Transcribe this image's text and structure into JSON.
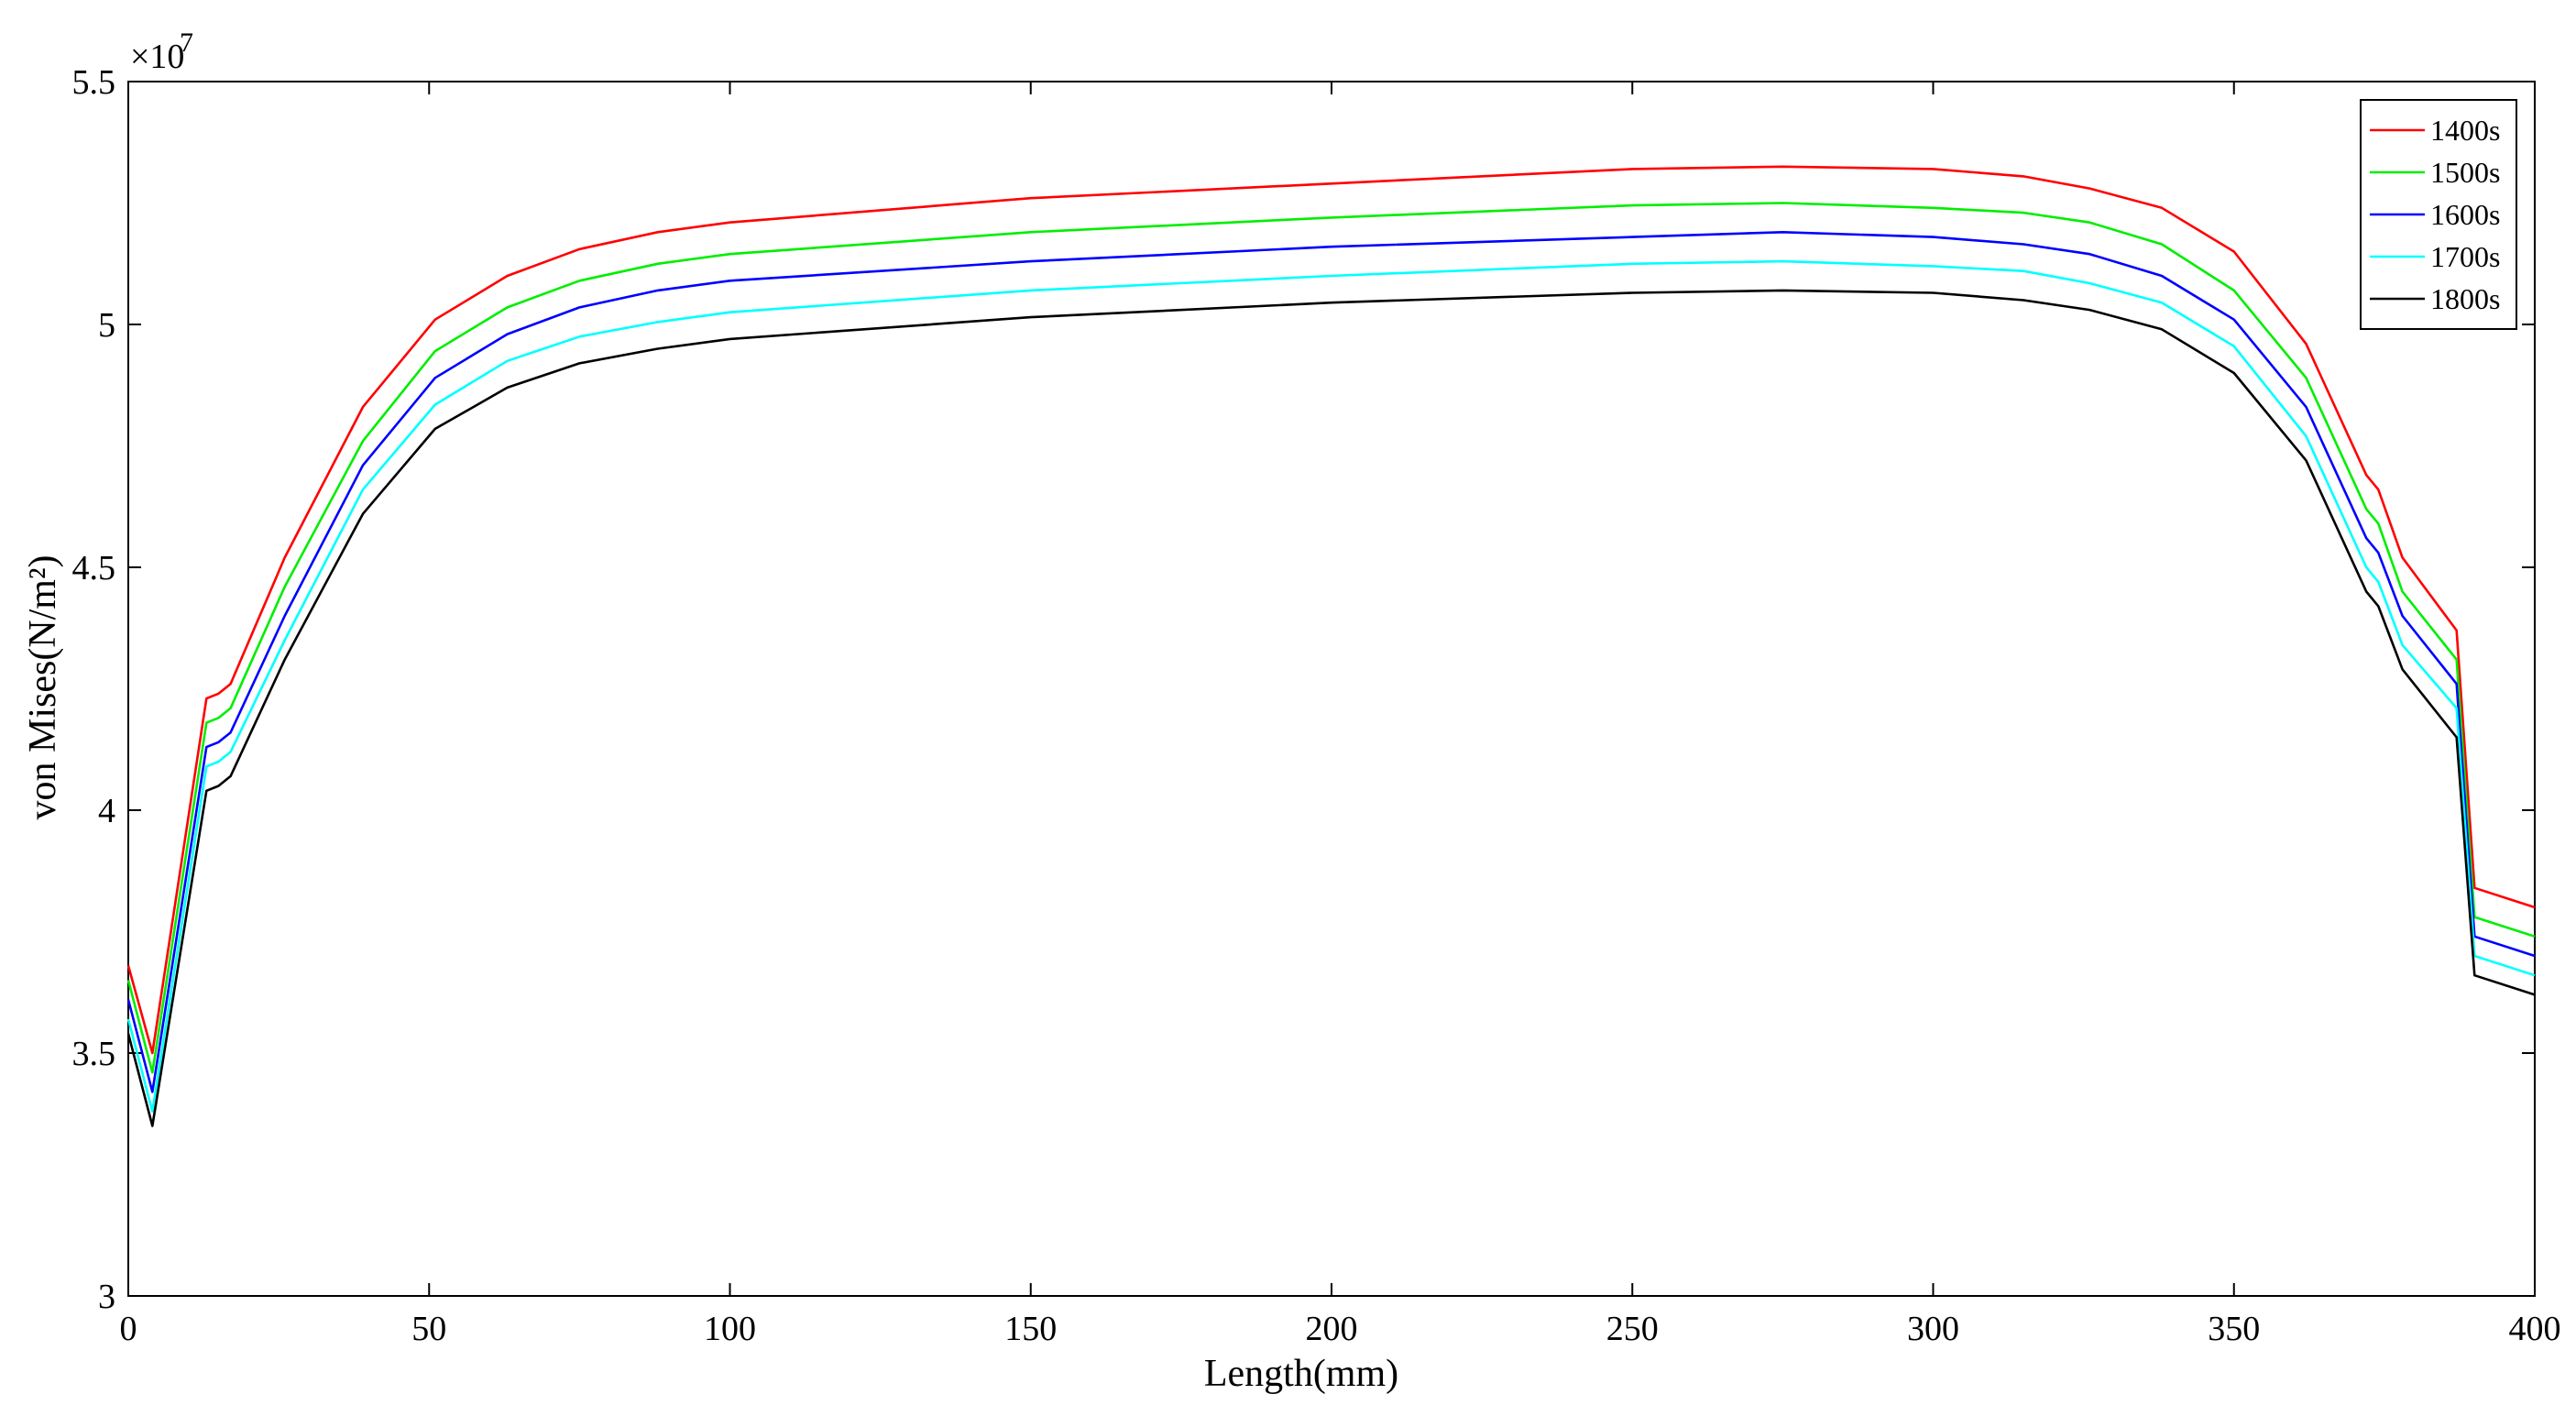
{
  "chart_data": {
    "type": "line",
    "title": "",
    "xlabel": "Length(mm)",
    "ylabel": "von Mises(N/m²)",
    "xlim": [
      0,
      400
    ],
    "ylim": [
      3.0,
      5.5
    ],
    "y_multiplier": "×10",
    "y_exponent": "7",
    "xticks": [
      "0",
      "50",
      "100",
      "150",
      "200",
      "250",
      "300",
      "350",
      "400"
    ],
    "yticks": [
      "3",
      "3.5",
      "4",
      "4.5",
      "5",
      "5.5"
    ],
    "grid": false,
    "legend_position": "top-right",
    "x": [
      0,
      4,
      13,
      15,
      17,
      26,
      39,
      51,
      63,
      75,
      88,
      100,
      150,
      200,
      250,
      275,
      300,
      315,
      326,
      338,
      350,
      362,
      372,
      374,
      378,
      387,
      390,
      400
    ],
    "series": [
      {
        "name": "1400s",
        "color": "#ff0000",
        "values": [
          3.68,
          3.5,
          4.23,
          4.24,
          4.26,
          4.52,
          4.83,
          5.01,
          5.1,
          5.155,
          5.19,
          5.21,
          5.26,
          5.29,
          5.32,
          5.325,
          5.32,
          5.305,
          5.28,
          5.24,
          5.15,
          4.96,
          4.69,
          4.66,
          4.52,
          4.37,
          3.84,
          3.8
        ]
      },
      {
        "name": "1500s",
        "color": "#00ee00",
        "values": [
          3.65,
          3.46,
          4.18,
          4.19,
          4.21,
          4.46,
          4.76,
          4.945,
          5.035,
          5.09,
          5.125,
          5.145,
          5.19,
          5.22,
          5.245,
          5.25,
          5.24,
          5.23,
          5.21,
          5.165,
          5.07,
          4.89,
          4.62,
          4.59,
          4.45,
          4.31,
          3.78,
          3.74
        ]
      },
      {
        "name": "1600s",
        "color": "#0000ff",
        "values": [
          3.61,
          3.42,
          4.13,
          4.14,
          4.16,
          4.4,
          4.71,
          4.89,
          4.98,
          5.035,
          5.07,
          5.09,
          5.13,
          5.16,
          5.18,
          5.19,
          5.18,
          5.165,
          5.145,
          5.1,
          5.01,
          4.83,
          4.56,
          4.53,
          4.4,
          4.26,
          3.74,
          3.7
        ]
      },
      {
        "name": "1700s",
        "color": "#00ffff",
        "values": [
          3.57,
          3.38,
          4.09,
          4.1,
          4.12,
          4.35,
          4.66,
          4.835,
          4.925,
          4.975,
          5.005,
          5.025,
          5.07,
          5.1,
          5.125,
          5.13,
          5.12,
          5.11,
          5.085,
          5.045,
          4.955,
          4.77,
          4.5,
          4.47,
          4.34,
          4.21,
          3.7,
          3.66
        ]
      },
      {
        "name": "1800s",
        "color": "#000000",
        "values": [
          3.54,
          3.35,
          4.04,
          4.05,
          4.07,
          4.31,
          4.61,
          4.785,
          4.87,
          4.92,
          4.95,
          4.97,
          5.015,
          5.045,
          5.065,
          5.07,
          5.065,
          5.05,
          5.03,
          4.99,
          4.9,
          4.72,
          4.45,
          4.42,
          4.29,
          4.15,
          3.66,
          3.62
        ]
      }
    ]
  }
}
